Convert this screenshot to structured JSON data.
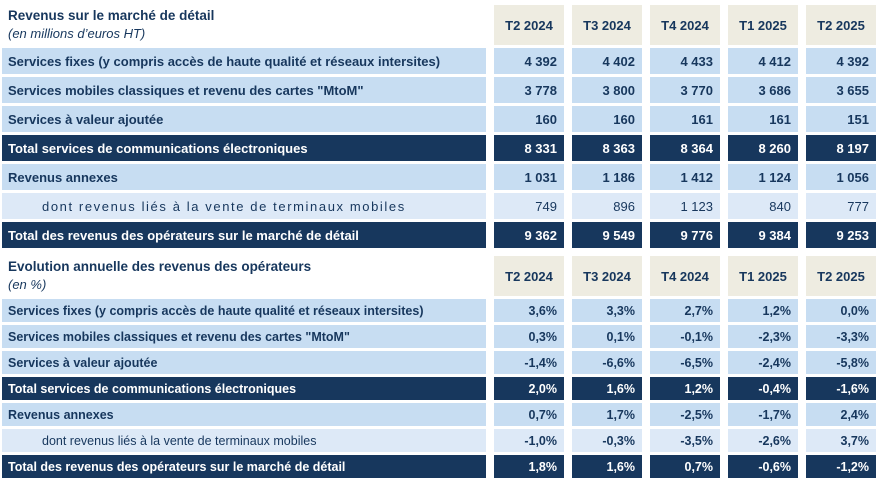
{
  "colors": {
    "navy": "#17375D",
    "row_blue": "#C7DDF2",
    "row_blue_light": "#DDE9F7",
    "header_beige": "#EEECE1",
    "text_navy": "#17375D",
    "page_bg": "#FFFFFF"
  },
  "tables": [
    {
      "title": "Revenus sur le marché de détail",
      "subtitle": "(en millions d’euros HT)",
      "columns": [
        "T2 2024",
        "T3 2024",
        "T4 2024",
        "T1 2025",
        "T2 2025"
      ],
      "rows": [
        {
          "label": "Services fixes (y compris accès de haute qualité et réseaux intersites)",
          "values": [
            "4 392",
            "4 402",
            "4 433",
            "4 412",
            "4 392"
          ]
        },
        {
          "label": "Services mobiles classiques et revenu des cartes \"MtoM\"",
          "values": [
            "3 778",
            "3 800",
            "3 770",
            "3 686",
            "3 655"
          ]
        },
        {
          "label": "Services à valeur ajoutée",
          "values": [
            "160",
            "160",
            "161",
            "161",
            "151"
          ]
        },
        {
          "label": "Total services de communications électroniques",
          "values": [
            "8 331",
            "8 363",
            "8 364",
            "8 260",
            "8 197"
          ]
        },
        {
          "label": "Revenus annexes",
          "values": [
            "1 031",
            "1 186",
            "1 412",
            "1 124",
            "1 056"
          ]
        },
        {
          "label": "dont revenus liés à la vente de terminaux mobiles",
          "values": [
            "749",
            "896",
            "1 123",
            "840",
            "777"
          ]
        },
        {
          "label": "Total des revenus des opérateurs sur le marché de détail",
          "values": [
            "9 362",
            "9 549",
            "9 776",
            "9 384",
            "9 253"
          ]
        }
      ]
    },
    {
      "title": "Evolution annuelle des revenus des opérateurs",
      "subtitle": "(en %)",
      "columns": [
        "T2 2024",
        "T3 2024",
        "T4 2024",
        "T1 2025",
        "T2 2025"
      ],
      "rows": [
        {
          "label": "Services fixes (y compris accès de haute qualité et réseaux intersites)",
          "values": [
            "3,6%",
            "3,3%",
            "2,7%",
            "1,2%",
            "0,0%"
          ]
        },
        {
          "label": "Services mobiles classiques et revenu des cartes \"MtoM\"",
          "values": [
            "0,3%",
            "0,1%",
            "-0,1%",
            "-2,3%",
            "-3,3%"
          ]
        },
        {
          "label": "Services à valeur ajoutée",
          "values": [
            "-1,4%",
            "-6,6%",
            "-6,5%",
            "-2,4%",
            "-5,8%"
          ]
        },
        {
          "label": "Total services de communications électroniques",
          "values": [
            "2,0%",
            "1,6%",
            "1,2%",
            "-0,4%",
            "-1,6%"
          ]
        },
        {
          "label": "Revenus annexes",
          "values": [
            "0,7%",
            "1,7%",
            "-2,5%",
            "-1,7%",
            "2,4%"
          ]
        },
        {
          "label": "dont revenus liés à la vente de terminaux mobiles",
          "values": [
            "-1,0%",
            "-0,3%",
            "-3,5%",
            "-2,6%",
            "3,7%"
          ]
        },
        {
          "label": "Total des revenus des opérateurs sur le marché de détail",
          "values": [
            "1,8%",
            "1,6%",
            "0,7%",
            "-0,6%",
            "-1,2%"
          ]
        }
      ]
    }
  ]
}
